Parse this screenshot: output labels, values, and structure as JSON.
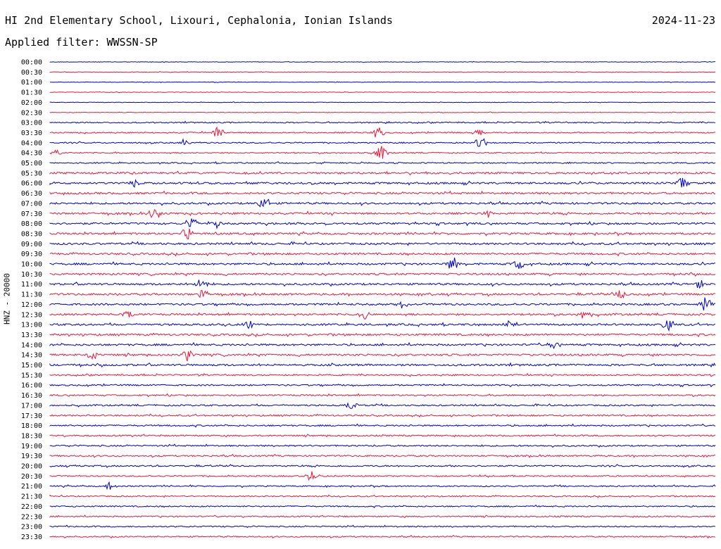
{
  "header": {
    "station": "HI 2nd Elementary School, Lixouri, Cephalonia, Ionian Islands",
    "date": "2024-11-23",
    "filter": "Applied filter: WWSSN-SP"
  },
  "chart_data": {
    "type": "helicorder",
    "channel_label": "HNZ - 20000",
    "trace_colors": [
      "#0000cc",
      "#e8173a"
    ],
    "row_labels": [
      "00:00",
      "00:30",
      "01:00",
      "01:30",
      "02:00",
      "02:30",
      "03:00",
      "03:30",
      "04:00",
      "04:30",
      "05:00",
      "05:30",
      "06:00",
      "06:30",
      "07:00",
      "07:30",
      "08:00",
      "08:30",
      "09:00",
      "09:30",
      "10:00",
      "10:30",
      "11:00",
      "11:30",
      "12:00",
      "12:30",
      "13:00",
      "13:30",
      "14:00",
      "14:30",
      "15:00",
      "15:30",
      "16:00",
      "16:30",
      "17:00",
      "17:30",
      "18:00",
      "18:30",
      "19:00",
      "19:30",
      "20:00",
      "20:30",
      "21:00",
      "21:30",
      "22:00",
      "22:30",
      "23:00",
      "23:30"
    ]
  }
}
